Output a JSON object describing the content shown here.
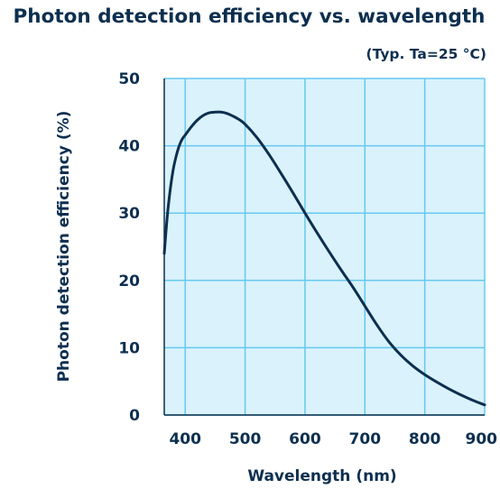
{
  "chart_data": {
    "type": "line",
    "title": "Photon detection efficiency vs. wavelength",
    "subtitle": "(Typ. Ta=25 °C)",
    "xlabel": "Wavelength (nm)",
    "ylabel": "Photon detection efficiency (%)",
    "xlim": [
      365,
      900
    ],
    "ylim": [
      0,
      50
    ],
    "x_ticks": [
      400,
      500,
      600,
      700,
      800,
      900
    ],
    "y_ticks": [
      0,
      10,
      20,
      30,
      40,
      50
    ],
    "x_tick_labels": [
      "400",
      "500",
      "600",
      "700",
      "800",
      "900"
    ],
    "y_tick_labels": [
      "0",
      "10",
      "20",
      "30",
      "40",
      "50"
    ],
    "grid": true,
    "series": [
      {
        "x": [
          365,
          370,
          375,
          380,
          385,
          390,
          395,
          400,
          410,
          420,
          430,
          440,
          450,
          460,
          470,
          480,
          490,
          500,
          520,
          540,
          560,
          580,
          600,
          620,
          640,
          660,
          680,
          700,
          720,
          740,
          760,
          780,
          800,
          820,
          840,
          860,
          880,
          900
        ],
        "y": [
          24.0,
          29.5,
          33.5,
          36.5,
          38.5,
          40.0,
          41.0,
          41.6,
          42.8,
          43.8,
          44.5,
          44.9,
          45.0,
          45.0,
          44.8,
          44.4,
          43.9,
          43.2,
          41.2,
          38.7,
          35.9,
          33.0,
          30.0,
          27.1,
          24.3,
          21.6,
          19.0,
          16.2,
          13.4,
          10.9,
          8.9,
          7.3,
          6.0,
          4.9,
          3.9,
          3.0,
          2.2,
          1.5
        ]
      }
    ],
    "colors": {
      "plot_background": "#d9f2fc",
      "grid": "#66c8ee",
      "line": "#0d2f4f",
      "text": "#0d2f4f"
    }
  }
}
